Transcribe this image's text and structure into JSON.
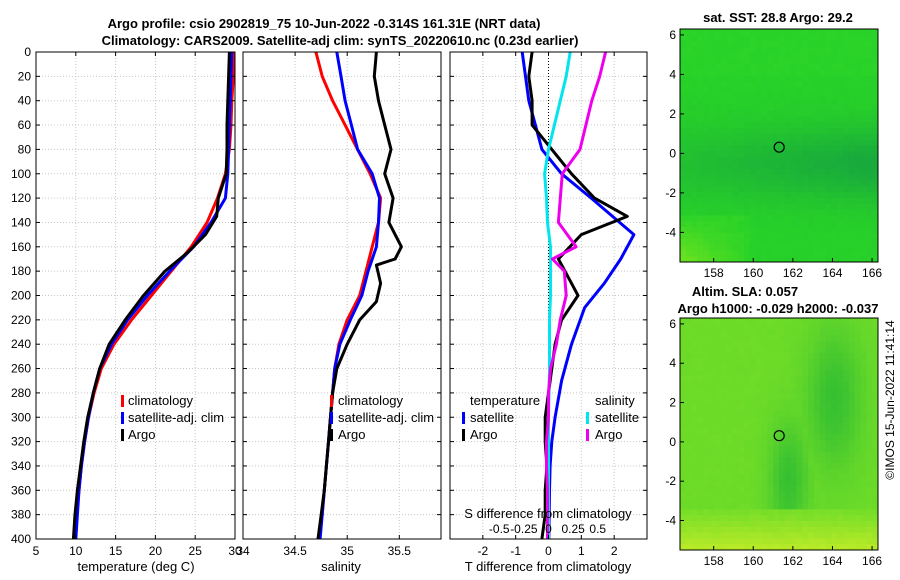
{
  "titles": {
    "line1": "Argo profile: csio 2902819_75 10-Jun-2022 -0.314S 161.31E (NRT data)",
    "line2": "Climatology: CARS2009. Satellite-adj clim: synTS_20220610.nc (0.23d earlier)",
    "sst_title": "sat. SST: 28.8 Argo: 29.2",
    "sla_title1": "Altim. SLA: 0.057",
    "sla_title2": "Argo h1000: -0.029 h2000: -0.037",
    "credit": "©IMOS 15-Jun-2022 11:41:14"
  },
  "colors": {
    "climatology": "#ff0000",
    "satellite": "#0000ff",
    "argo": "#000000",
    "s_satellite": "#00e5ee",
    "s_argo": "#ee00ee",
    "map_bg": "#33d633"
  },
  "legend": {
    "climatology": "climatology",
    "satellite_adj": "satellite-adj. clim",
    "argo": "Argo",
    "temperature_head": "temperature",
    "salinity_head": "salinity",
    "satellite": "satellite"
  },
  "chart_data": [
    {
      "type": "line",
      "name": "temperature",
      "xlabel": "temperature (deg C)",
      "ylabel": "",
      "xlim": [
        5,
        30
      ],
      "ylim": [
        0,
        400
      ],
      "y_reversed": true,
      "xticks": [
        5,
        10,
        15,
        20,
        25,
        30
      ],
      "yticks": [
        0,
        20,
        40,
        60,
        80,
        100,
        120,
        140,
        160,
        180,
        200,
        220,
        240,
        260,
        280,
        300,
        320,
        340,
        360,
        380,
        400
      ],
      "series": [
        {
          "name": "climatology",
          "color_key": "climatology",
          "points": [
            [
              29.8,
              0
            ],
            [
              29.8,
              20
            ],
            [
              29.6,
              40
            ],
            [
              29.5,
              60
            ],
            [
              29.3,
              80
            ],
            [
              28.8,
              100
            ],
            [
              27.8,
              120
            ],
            [
              26.5,
              140
            ],
            [
              24.5,
              160
            ],
            [
              22.0,
              180
            ],
            [
              19.5,
              200
            ],
            [
              17.0,
              220
            ],
            [
              14.8,
              240
            ],
            [
              13.2,
              260
            ],
            [
              12.3,
              280
            ],
            [
              11.6,
              300
            ],
            [
              11.1,
              320
            ],
            [
              10.7,
              340
            ],
            [
              10.4,
              360
            ],
            [
              10.1,
              380
            ],
            [
              9.9,
              400
            ]
          ]
        },
        {
          "name": "satellite-adj. clim",
          "color_key": "satellite",
          "points": [
            [
              29.6,
              0
            ],
            [
              29.5,
              20
            ],
            [
              29.4,
              40
            ],
            [
              29.3,
              60
            ],
            [
              29.2,
              80
            ],
            [
              29.1,
              100
            ],
            [
              28.8,
              120
            ],
            [
              27.0,
              140
            ],
            [
              24.8,
              160
            ],
            [
              21.8,
              180
            ],
            [
              19.0,
              200
            ],
            [
              16.5,
              220
            ],
            [
              14.5,
              240
            ],
            [
              13.0,
              260
            ],
            [
              12.2,
              280
            ],
            [
              11.6,
              300
            ],
            [
              11.1,
              320
            ],
            [
              10.7,
              340
            ],
            [
              10.4,
              360
            ],
            [
              10.2,
              380
            ],
            [
              10.0,
              400
            ]
          ]
        },
        {
          "name": "Argo",
          "color_key": "argo",
          "points": [
            [
              29.3,
              0
            ],
            [
              29.2,
              20
            ],
            [
              29.1,
              40
            ],
            [
              29.0,
              60
            ],
            [
              29.0,
              80
            ],
            [
              28.9,
              100
            ],
            [
              27.9,
              120
            ],
            [
              27.7,
              135
            ],
            [
              26.3,
              150
            ],
            [
              24.0,
              165
            ],
            [
              21.2,
              180
            ],
            [
              18.5,
              200
            ],
            [
              16.2,
              220
            ],
            [
              14.2,
              240
            ],
            [
              13.0,
              260
            ],
            [
              12.2,
              280
            ],
            [
              11.5,
              300
            ],
            [
              11.0,
              320
            ],
            [
              10.6,
              340
            ],
            [
              10.2,
              360
            ],
            [
              9.9,
              380
            ],
            [
              9.7,
              400
            ]
          ]
        }
      ]
    },
    {
      "type": "line",
      "name": "salinity",
      "xlabel": "salinity",
      "xlim": [
        34,
        35.9
      ],
      "ylim": [
        0,
        400
      ],
      "y_reversed": true,
      "xticks": [
        34,
        34.5,
        35,
        35.5
      ],
      "series": [
        {
          "name": "climatology",
          "color_key": "climatology",
          "points": [
            [
              34.7,
              0
            ],
            [
              34.76,
              20
            ],
            [
              34.86,
              40
            ],
            [
              34.98,
              60
            ],
            [
              35.1,
              80
            ],
            [
              35.22,
              100
            ],
            [
              35.32,
              120
            ],
            [
              35.3,
              140
            ],
            [
              35.24,
              160
            ],
            [
              35.18,
              180
            ],
            [
              35.12,
              200
            ],
            [
              35.0,
              220
            ],
            [
              34.92,
              240
            ],
            [
              34.88,
              260
            ],
            [
              34.86,
              280
            ],
            [
              34.84,
              300
            ],
            [
              34.82,
              320
            ],
            [
              34.8,
              340
            ],
            [
              34.78,
              360
            ],
            [
              34.76,
              380
            ],
            [
              34.73,
              400
            ]
          ]
        },
        {
          "name": "satellite-adj. clim",
          "color_key": "satellite",
          "points": [
            [
              34.9,
              0
            ],
            [
              34.94,
              20
            ],
            [
              34.98,
              40
            ],
            [
              35.04,
              60
            ],
            [
              35.1,
              80
            ],
            [
              35.24,
              100
            ],
            [
              35.31,
              120
            ],
            [
              35.3,
              140
            ],
            [
              35.28,
              160
            ],
            [
              35.2,
              180
            ],
            [
              35.14,
              200
            ],
            [
              35.03,
              220
            ],
            [
              34.93,
              240
            ],
            [
              34.88,
              260
            ],
            [
              34.86,
              280
            ],
            [
              34.84,
              300
            ],
            [
              34.82,
              320
            ],
            [
              34.8,
              340
            ],
            [
              34.78,
              360
            ],
            [
              34.76,
              380
            ],
            [
              34.74,
              400
            ]
          ]
        },
        {
          "name": "Argo",
          "color_key": "argo",
          "points": [
            [
              35.28,
              0
            ],
            [
              35.26,
              20
            ],
            [
              35.3,
              40
            ],
            [
              35.36,
              60
            ],
            [
              35.42,
              80
            ],
            [
              35.36,
              100
            ],
            [
              35.44,
              120
            ],
            [
              35.4,
              140
            ],
            [
              35.52,
              160
            ],
            [
              35.46,
              170
            ],
            [
              35.28,
              175
            ],
            [
              35.32,
              190
            ],
            [
              35.28,
              205
            ],
            [
              35.12,
              220
            ],
            [
              35.0,
              240
            ],
            [
              34.9,
              260
            ],
            [
              34.86,
              280
            ],
            [
              34.84,
              300
            ],
            [
              34.82,
              320
            ],
            [
              34.8,
              340
            ],
            [
              34.78,
              360
            ],
            [
              34.75,
              380
            ],
            [
              34.72,
              400
            ]
          ]
        }
      ]
    },
    {
      "type": "line",
      "name": "difference",
      "xlabel": "T difference from climatology",
      "x2label": "S difference from climatology",
      "xlim": [
        -3,
        3
      ],
      "x2lim": [
        -1,
        1
      ],
      "ylim": [
        0,
        400
      ],
      "y_reversed": true,
      "xticks": [
        -2,
        -1,
        0,
        1,
        2
      ],
      "x2ticks": [
        -0.5,
        -0.25,
        0,
        0.25,
        0.5
      ],
      "x2ticklabels": [
        "-0.5",
        "-0.25",
        "0",
        "0.25",
        "0.5"
      ],
      "series": [
        {
          "name": "T satellite",
          "color_key": "satellite",
          "axis": "T",
          "points": [
            [
              -0.8,
              0
            ],
            [
              -0.7,
              20
            ],
            [
              -0.6,
              40
            ],
            [
              -0.4,
              60
            ],
            [
              -0.2,
              80
            ],
            [
              0.4,
              100
            ],
            [
              1.3,
              120
            ],
            [
              2.6,
              150
            ],
            [
              2.2,
              170
            ],
            [
              1.7,
              190
            ],
            [
              1.1,
              210
            ],
            [
              0.7,
              240
            ],
            [
              0.4,
              270
            ],
            [
              0.2,
              300
            ],
            [
              0.1,
              320
            ],
            [
              0.05,
              340
            ],
            [
              0.03,
              360
            ],
            [
              0.02,
              380
            ],
            [
              0.01,
              400
            ]
          ]
        },
        {
          "name": "T Argo",
          "color_key": "argo",
          "axis": "T",
          "points": [
            [
              -0.5,
              0
            ],
            [
              -0.6,
              20
            ],
            [
              -0.5,
              40
            ],
            [
              -0.5,
              60
            ],
            [
              0.1,
              80
            ],
            [
              0.7,
              100
            ],
            [
              1.4,
              120
            ],
            [
              2.4,
              135
            ],
            [
              1.0,
              150
            ],
            [
              0.3,
              170
            ],
            [
              0.7,
              190
            ],
            [
              0.9,
              200
            ],
            [
              0.4,
              220
            ],
            [
              0.2,
              240
            ],
            [
              0.0,
              280
            ],
            [
              -0.1,
              300
            ],
            [
              -0.1,
              320
            ],
            [
              -0.05,
              340
            ],
            [
              -0.1,
              360
            ],
            [
              -0.1,
              380
            ],
            [
              -0.2,
              400
            ]
          ]
        },
        {
          "name": "S satellite",
          "color_key": "s_satellite",
          "axis": "S",
          "points": [
            [
              0.22,
              0
            ],
            [
              0.18,
              20
            ],
            [
              0.12,
              40
            ],
            [
              0.06,
              60
            ],
            [
              0.0,
              80
            ],
            [
              -0.04,
              100
            ],
            [
              -0.02,
              120
            ],
            [
              -0.01,
              140
            ],
            [
              0.02,
              160
            ],
            [
              0.02,
              180
            ],
            [
              0.02,
              200
            ],
            [
              0.01,
              220
            ],
            [
              0.01,
              260
            ],
            [
              0.0,
              300
            ],
            [
              0.0,
              340
            ],
            [
              0.0,
              380
            ],
            [
              0.0,
              400
            ]
          ]
        },
        {
          "name": "S Argo",
          "color_key": "s_argo",
          "axis": "S",
          "points": [
            [
              0.58,
              0
            ],
            [
              0.52,
              20
            ],
            [
              0.44,
              40
            ],
            [
              0.38,
              60
            ],
            [
              0.32,
              80
            ],
            [
              0.14,
              100
            ],
            [
              0.12,
              120
            ],
            [
              0.1,
              140
            ],
            [
              0.28,
              160
            ],
            [
              0.04,
              170
            ],
            [
              0.16,
              180
            ],
            [
              0.18,
              200
            ],
            [
              0.12,
              220
            ],
            [
              0.08,
              240
            ],
            [
              0.02,
              260
            ],
            [
              0.0,
              280
            ],
            [
              0.0,
              300
            ],
            [
              -0.02,
              320
            ],
            [
              -0.02,
              340
            ],
            [
              -0.01,
              360
            ],
            [
              -0.01,
              380
            ],
            [
              -0.01,
              400
            ]
          ]
        }
      ]
    },
    {
      "type": "heatmap",
      "name": "sst_map",
      "title": "sat. SST: 28.8 Argo: 29.2",
      "xlim": [
        156.3,
        166.3
      ],
      "ylim": [
        -5.5,
        6.3
      ],
      "xticks": [
        158,
        160,
        162,
        164,
        166
      ],
      "yticks": [
        6,
        4,
        2,
        0,
        -2,
        -4
      ],
      "argo_position": [
        161.31,
        0.314
      ]
    },
    {
      "type": "heatmap",
      "name": "sla_map",
      "title": "Altim. SLA: 0.057",
      "xlim": [
        156.3,
        166.3
      ],
      "ylim": [
        -5.5,
        6.3
      ],
      "xticks": [
        158,
        160,
        162,
        164,
        166
      ],
      "yticks": [
        6,
        4,
        2,
        0,
        -2,
        -4
      ],
      "argo_position": [
        161.31,
        0.314
      ]
    }
  ]
}
